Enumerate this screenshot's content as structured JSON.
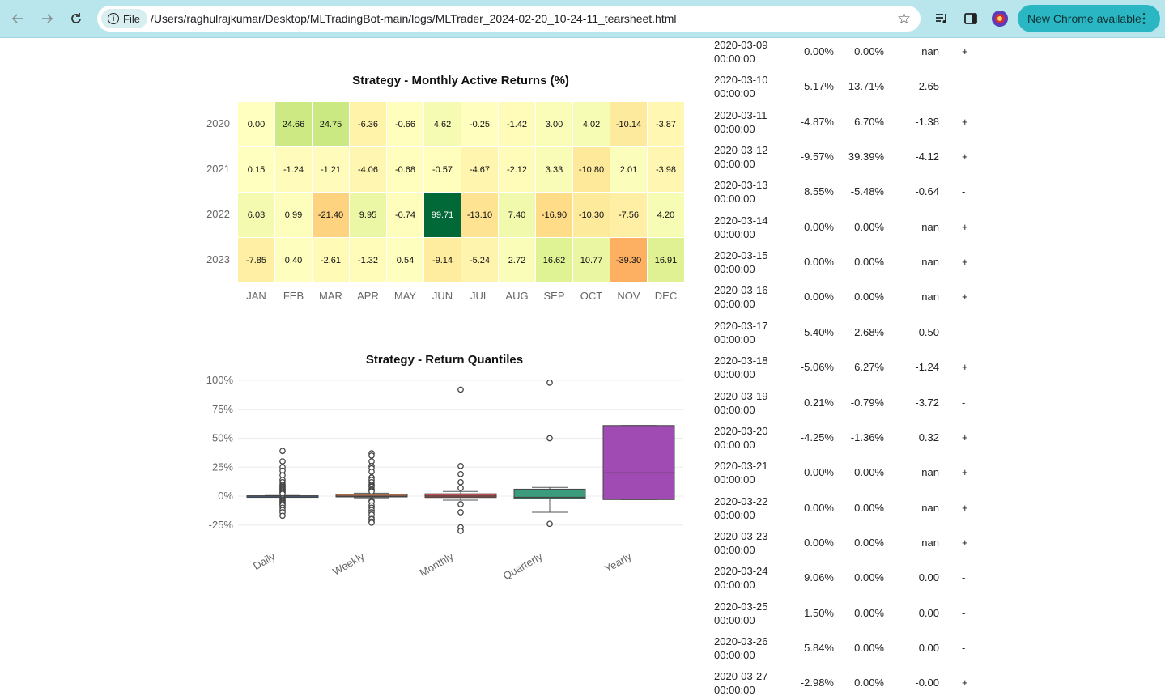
{
  "browser": {
    "file_chip": "File",
    "url": "/Users/raghulrajkumar/Desktop/MLTradingBot-main/logs/MLTrader_2024-02-20_10-24-11_tearsheet.html",
    "update_label": "New Chrome available",
    "icons": [
      "back-arrow-icon",
      "forward-arrow-icon",
      "reload-icon",
      "info-icon",
      "star-icon",
      "media-control-icon",
      "side-panel-icon",
      "profile-icon",
      "menu-dots-icon"
    ]
  },
  "heatmap": {
    "title": "Strategy - Monthly Active Returns (%)",
    "months": [
      "JAN",
      "FEB",
      "MAR",
      "APR",
      "MAY",
      "JUN",
      "JUL",
      "AUG",
      "SEP",
      "OCT",
      "NOV",
      "DEC"
    ],
    "years": [
      "2020",
      "2021",
      "2022",
      "2023"
    ],
    "values": [
      [
        "0.00",
        "24.66",
        "24.75",
        "-6.36",
        "-0.66",
        "4.62",
        "-0.25",
        "-1.42",
        "3.00",
        "4.02",
        "-10.14",
        "-3.87"
      ],
      [
        "0.15",
        "-1.24",
        "-1.21",
        "-4.06",
        "-0.68",
        "-0.57",
        "-4.67",
        "-2.12",
        "3.33",
        "-10.80",
        "2.01",
        "-3.98"
      ],
      [
        "6.03",
        "0.99",
        "-21.40",
        "9.95",
        "-0.74",
        "99.71",
        "-13.10",
        "7.40",
        "-16.90",
        "-10.30",
        "-7.56",
        "4.20"
      ],
      [
        "-7.85",
        "0.40",
        "-2.61",
        "-1.32",
        "0.54",
        "-9.14",
        "-5.24",
        "2.72",
        "16.62",
        "10.77",
        "-39.30",
        "16.91"
      ]
    ]
  },
  "chart_data": {
    "type": "box",
    "title": "Strategy - Return Quantiles",
    "categories": [
      "Daily",
      "Weekly",
      "Monthly",
      "Quarterly",
      "Yearly"
    ],
    "y_ticks": [
      "100%",
      "75%",
      "50%",
      "25%",
      "0%",
      "-25%"
    ],
    "ylim": [
      -30,
      100
    ],
    "colors": [
      "#4c72b0",
      "#dd8452",
      "#c44e52",
      "#3a9c7d",
      "#a04ab4"
    ],
    "boxes": [
      {
        "name": "Daily",
        "whisker_low": -0.5,
        "q1": -0.3,
        "median": 0,
        "q3": 0.3,
        "whisker_high": 0.5,
        "outliers": [
          39,
          30,
          25,
          22,
          18,
          14,
          12,
          10,
          9,
          8,
          7,
          6,
          5,
          4,
          3,
          2,
          -2,
          -3,
          -4,
          -5,
          -6,
          -7,
          -8,
          -10,
          -12,
          -14,
          -17
        ]
      },
      {
        "name": "Weekly",
        "whisker_low": -1.5,
        "q1": -0.7,
        "median": 0,
        "q3": 1.5,
        "whisker_high": 2.5,
        "outliers": [
          37,
          35,
          30,
          26,
          24,
          21,
          16,
          14,
          12,
          10,
          9,
          8,
          6,
          5,
          4,
          -4,
          -5,
          -8,
          -10,
          -12,
          -14,
          -16,
          -19,
          -20,
          -22,
          -23
        ]
      },
      {
        "name": "Monthly",
        "whisker_low": -3.5,
        "q1": -1.2,
        "median": 0,
        "q3": 2,
        "whisker_high": 4,
        "outliers": [
          92,
          26,
          19,
          12,
          7,
          -7,
          -14,
          -27,
          -30
        ]
      },
      {
        "name": "Quarterly",
        "whisker_low": -14,
        "q1": -2,
        "median": -1,
        "q3": 6,
        "whisker_high": 7.5,
        "outliers": [
          98,
          50,
          -24
        ]
      },
      {
        "name": "Yearly",
        "whisker_low": -3,
        "q1": -3,
        "median": 20,
        "q3": 61,
        "whisker_high": 61,
        "outliers": []
      }
    ]
  },
  "table": {
    "rows": [
      {
        "date": "2020-03-09",
        "time": "00:00:00",
        "c1": "0.00%",
        "c2": "0.00%",
        "c3": "nan",
        "c4": "+"
      },
      {
        "date": "2020-03-10",
        "time": "00:00:00",
        "c1": "5.17%",
        "c2": "-13.71%",
        "c3": "-2.65",
        "c4": "-"
      },
      {
        "date": "2020-03-11",
        "time": "00:00:00",
        "c1": "-4.87%",
        "c2": "6.70%",
        "c3": "-1.38",
        "c4": "+"
      },
      {
        "date": "2020-03-12",
        "time": "00:00:00",
        "c1": "-9.57%",
        "c2": "39.39%",
        "c3": "-4.12",
        "c4": "+"
      },
      {
        "date": "2020-03-13",
        "time": "00:00:00",
        "c1": "8.55%",
        "c2": "-5.48%",
        "c3": "-0.64",
        "c4": "-"
      },
      {
        "date": "2020-03-14",
        "time": "00:00:00",
        "c1": "0.00%",
        "c2": "0.00%",
        "c3": "nan",
        "c4": "+"
      },
      {
        "date": "2020-03-15",
        "time": "00:00:00",
        "c1": "0.00%",
        "c2": "0.00%",
        "c3": "nan",
        "c4": "+"
      },
      {
        "date": "2020-03-16",
        "time": "00:00:00",
        "c1": "0.00%",
        "c2": "0.00%",
        "c3": "nan",
        "c4": "+"
      },
      {
        "date": "2020-03-17",
        "time": "00:00:00",
        "c1": "5.40%",
        "c2": "-2.68%",
        "c3": "-0.50",
        "c4": "-"
      },
      {
        "date": "2020-03-18",
        "time": "00:00:00",
        "c1": "-5.06%",
        "c2": "6.27%",
        "c3": "-1.24",
        "c4": "+"
      },
      {
        "date": "2020-03-19",
        "time": "00:00:00",
        "c1": "0.21%",
        "c2": "-0.79%",
        "c3": "-3.72",
        "c4": "-"
      },
      {
        "date": "2020-03-20",
        "time": "00:00:00",
        "c1": "-4.25%",
        "c2": "-1.36%",
        "c3": "0.32",
        "c4": "+"
      },
      {
        "date": "2020-03-21",
        "time": "00:00:00",
        "c1": "0.00%",
        "c2": "0.00%",
        "c3": "nan",
        "c4": "+"
      },
      {
        "date": "2020-03-22",
        "time": "00:00:00",
        "c1": "0.00%",
        "c2": "0.00%",
        "c3": "nan",
        "c4": "+"
      },
      {
        "date": "2020-03-23",
        "time": "00:00:00",
        "c1": "0.00%",
        "c2": "0.00%",
        "c3": "nan",
        "c4": "+"
      },
      {
        "date": "2020-03-24",
        "time": "00:00:00",
        "c1": "9.06%",
        "c2": "0.00%",
        "c3": "0.00",
        "c4": "-"
      },
      {
        "date": "2020-03-25",
        "time": "00:00:00",
        "c1": "1.50%",
        "c2": "0.00%",
        "c3": "0.00",
        "c4": "-"
      },
      {
        "date": "2020-03-26",
        "time": "00:00:00",
        "c1": "5.84%",
        "c2": "0.00%",
        "c3": "0.00",
        "c4": "-"
      },
      {
        "date": "2020-03-27",
        "time": "00:00:00",
        "c1": "-2.98%",
        "c2": "0.00%",
        "c3": "-0.00",
        "c4": "+"
      }
    ]
  }
}
